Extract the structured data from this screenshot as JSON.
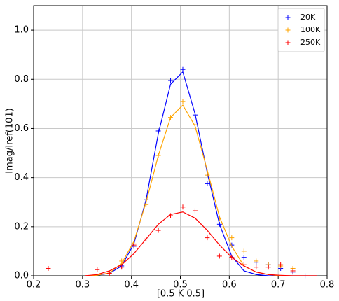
{
  "chart_data": {
    "type": "scatter",
    "xlabel": "[0.5 K 0.5]",
    "ylabel": "Imag/Iref(101)",
    "xlim": [
      0.2,
      0.8
    ],
    "ylim": [
      0,
      1.1
    ],
    "xticks": [
      0.2,
      0.3,
      0.4,
      0.5,
      0.6,
      0.7,
      0.8
    ],
    "yticks": [
      {
        "value": 0,
        "label": "0.0"
      },
      0.2,
      0.4,
      0.6,
      0.8,
      {
        "value": 1,
        "label": "1.0"
      }
    ],
    "grid": true,
    "legend": "upper right",
    "series": [
      {
        "name": "20K",
        "color": "#0000ff",
        "x": [
          0.38,
          0.405,
          0.43,
          0.455,
          0.48,
          0.505,
          0.53,
          0.555,
          0.58,
          0.605,
          0.63,
          0.655,
          0.68,
          0.705,
          0.73,
          0.755
        ],
        "values": [
          0.04,
          0.12,
          0.31,
          0.59,
          0.795,
          0.84,
          0.655,
          0.375,
          0.21,
          0.125,
          0.075,
          0.055,
          0.045,
          0.03,
          0.015,
          0.0
        ],
        "fit": {
          "x": [
            0.305,
            0.33,
            0.355,
            0.38,
            0.405,
            0.43,
            0.455,
            0.48,
            0.505,
            0.53,
            0.555,
            0.58,
            0.605,
            0.63,
            0.655,
            0.68,
            0.705,
            0.73,
            0.755,
            0.78
          ],
          "values": [
            0,
            0.002,
            0.01,
            0.04,
            0.13,
            0.31,
            0.58,
            0.78,
            0.83,
            0.66,
            0.42,
            0.21,
            0.08,
            0.02,
            0.005,
            0,
            0,
            0,
            0,
            0
          ]
        }
      },
      {
        "name": "100K",
        "color": "#ffa500",
        "x": [
          0.38,
          0.405,
          0.43,
          0.455,
          0.48,
          0.505,
          0.53,
          0.555,
          0.58,
          0.605,
          0.63,
          0.655,
          0.68,
          0.705,
          0.73
        ],
        "values": [
          0.06,
          0.13,
          0.29,
          0.49,
          0.645,
          0.71,
          0.615,
          0.41,
          0.235,
          0.155,
          0.1,
          0.06,
          0.045,
          0.04,
          0.03
        ],
        "fit": {
          "x": [
            0.305,
            0.33,
            0.355,
            0.38,
            0.405,
            0.43,
            0.455,
            0.48,
            0.505,
            0.53,
            0.555,
            0.58,
            0.605,
            0.63,
            0.655,
            0.68,
            0.705,
            0.73,
            0.755,
            0.78
          ],
          "values": [
            0,
            0.002,
            0.012,
            0.05,
            0.14,
            0.3,
            0.49,
            0.645,
            0.695,
            0.61,
            0.43,
            0.24,
            0.12,
            0.04,
            0.015,
            0.005,
            0,
            0,
            0,
            0
          ]
        }
      },
      {
        "name": "250K",
        "color": "#ff0000",
        "x": [
          0.23,
          0.33,
          0.355,
          0.38,
          0.405,
          0.43,
          0.455,
          0.48,
          0.505,
          0.53,
          0.555,
          0.58,
          0.605,
          0.63,
          0.655,
          0.68,
          0.705,
          0.73
        ],
        "values": [
          0.03,
          0.025,
          0.01,
          0.035,
          0.125,
          0.15,
          0.185,
          0.245,
          0.28,
          0.265,
          0.155,
          0.08,
          0.075,
          0.045,
          0.035,
          0.035,
          0.045,
          0.02
        ],
        "fit": {
          "x": [
            0.305,
            0.33,
            0.355,
            0.38,
            0.405,
            0.43,
            0.455,
            0.48,
            0.505,
            0.53,
            0.555,
            0.58,
            0.605,
            0.63,
            0.655,
            0.68,
            0.705,
            0.73,
            0.755,
            0.78
          ],
          "values": [
            0,
            0.005,
            0.02,
            0.045,
            0.09,
            0.15,
            0.21,
            0.25,
            0.26,
            0.235,
            0.185,
            0.125,
            0.075,
            0.04,
            0.015,
            0.005,
            0.002,
            0,
            0,
            0
          ]
        }
      }
    ]
  }
}
